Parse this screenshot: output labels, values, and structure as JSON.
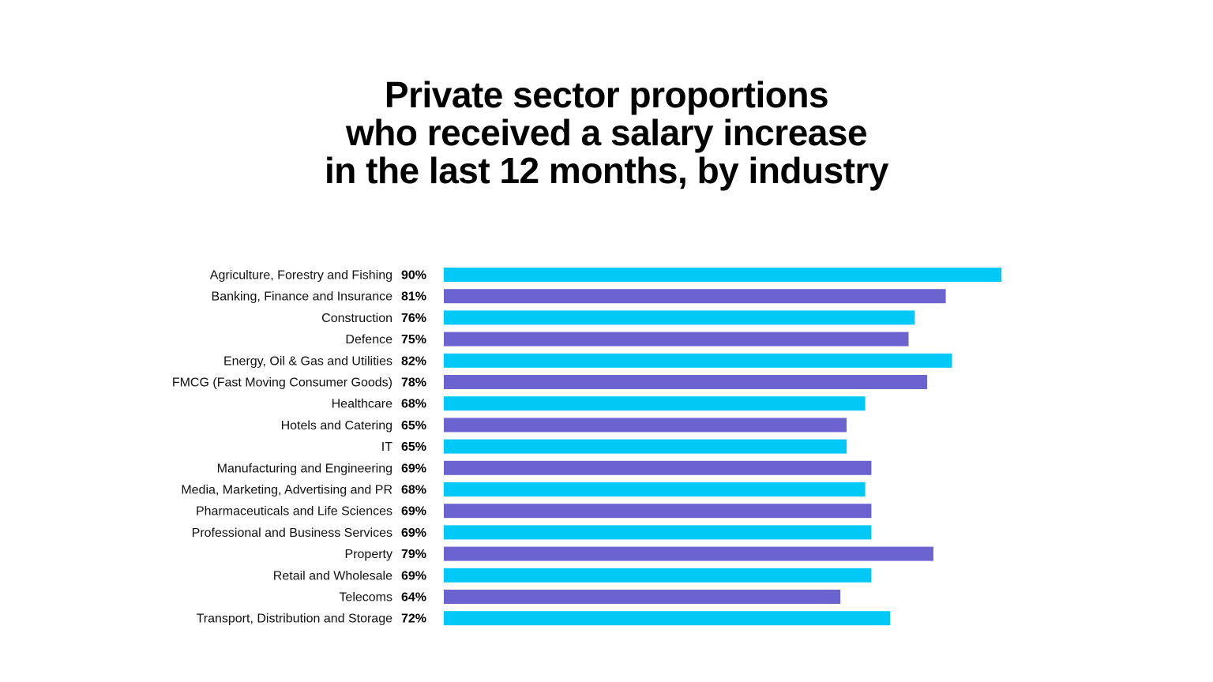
{
  "title_lines": [
    "Private sector proportions",
    "who received a salary increase",
    "in the last 12 months, by industry"
  ],
  "colors": {
    "bar_primary": "#00C9F7",
    "bar_secondary": "#6A63D0",
    "text": "#000000"
  },
  "chart_data": {
    "type": "bar",
    "orientation": "horizontal",
    "title": "Private sector proportions who received a salary increase in the last 12 months, by industry",
    "value_suffix": "%",
    "xlim": [
      0,
      100
    ],
    "grid": false,
    "legend": "none",
    "categories": [
      "Agriculture, Forestry and Fishing",
      "Banking, Finance and Insurance",
      "Construction",
      "Defence",
      "Energy, Oil & Gas and Utilities",
      "FMCG (Fast Moving Consumer Goods)",
      "Healthcare",
      "Hotels and Catering",
      "IT",
      "Manufacturing and Engineering",
      "Media, Marketing, Advertising and PR",
      "Pharmaceuticals and Life Sciences",
      "Professional and Business Services",
      "Property",
      "Retail and Wholesale",
      "Telecoms",
      "Transport, Distribution and Storage"
    ],
    "values": [
      90,
      81,
      76,
      75,
      82,
      78,
      68,
      65,
      65,
      69,
      68,
      69,
      69,
      79,
      69,
      64,
      72
    ]
  }
}
